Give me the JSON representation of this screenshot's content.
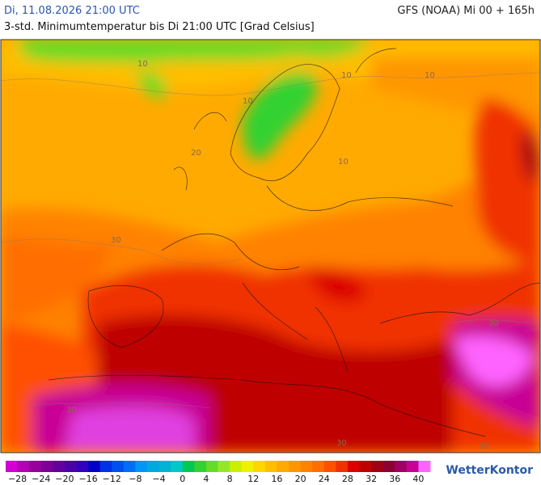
{
  "header": {
    "date": "Di, 11.08.2026 21:00 UTC",
    "model": "GFS (NOAA) Mi 00 + 165h",
    "title": "3-std. Minimumtemperatur bis Di 21:00 UTC [Grad Celsius]"
  },
  "contour_labels": [
    "10",
    "10",
    "10",
    "10",
    "10",
    "20",
    "30",
    "30",
    "30",
    "30",
    "30"
  ],
  "legend": {
    "colors": [
      "#d200d2",
      "#b400b4",
      "#96009b",
      "#7d0096",
      "#6400a0",
      "#4b00aa",
      "#3200be",
      "#0000c8",
      "#0032e6",
      "#0050f0",
      "#006ef5",
      "#0096f5",
      "#00aadc",
      "#00b4d2",
      "#00c8c8",
      "#00c850",
      "#32d232",
      "#64dc28",
      "#96e628",
      "#c8f000",
      "#f0f000",
      "#ffd700",
      "#ffbe00",
      "#ffaa00",
      "#ff9600",
      "#ff8200",
      "#ff6e00",
      "#ff5000",
      "#f03200",
      "#dc0000",
      "#be0000",
      "#a00014",
      "#8c0032",
      "#a00064",
      "#c80096",
      "#ff64ff"
    ],
    "labels": [
      "−28",
      "−24",
      "−20",
      "−16",
      "−12",
      "−8",
      "−4",
      "0",
      "4",
      "8",
      "12",
      "16",
      "20",
      "24",
      "28",
      "32",
      "36",
      "40"
    ]
  },
  "logo": "WetterKontor"
}
